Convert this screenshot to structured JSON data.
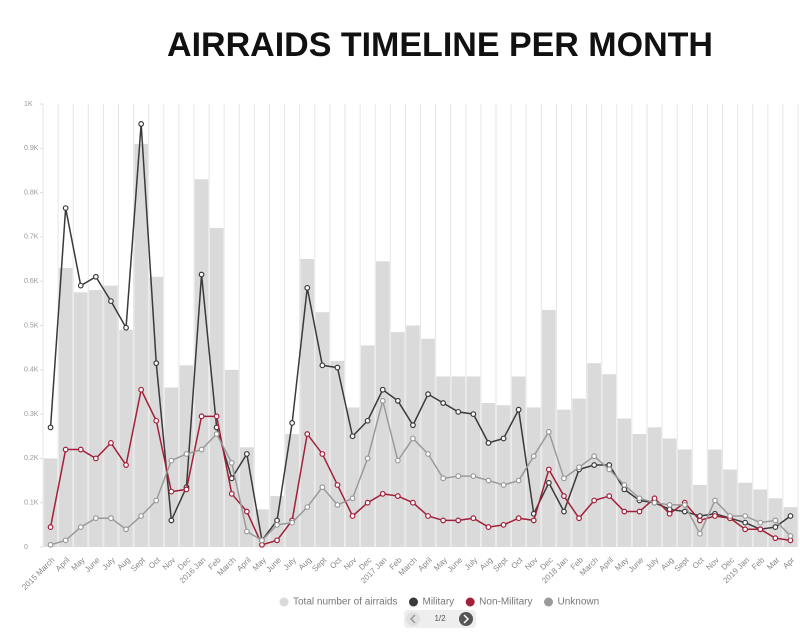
{
  "chart_data": {
    "type": "combo",
    "title": "AIRRAIDS TIMELINE PER MONTH",
    "categories": [
      "2015 March",
      "April",
      "May",
      "June",
      "July",
      "Aug",
      "Sept",
      "Oct",
      "Nov",
      "Dec",
      "2016 Jan",
      "Feb",
      "March",
      "April",
      "May",
      "June",
      "July",
      "Aug",
      "Sept",
      "Oct",
      "Nov",
      "Dec",
      "2017 Jan",
      "Feb",
      "March",
      "April",
      "May",
      "June",
      "July",
      "Aug",
      "Sept",
      "Oct",
      "Nov",
      "Dec",
      "2018 Jan",
      "Feb",
      "March",
      "April",
      "May",
      "June",
      "July",
      "Aug",
      "Sept",
      "Oct",
      "Nov",
      "Dec",
      "2019 Jan",
      "Feb",
      "Mar",
      "Apr"
    ],
    "series": [
      {
        "name": "Total number of airraids",
        "type": "bar",
        "color": "#dadada",
        "values": [
          200,
          630,
          575,
          580,
          590,
          490,
          910,
          610,
          360,
          410,
          830,
          720,
          400,
          225,
          85,
          115,
          255,
          650,
          530,
          420,
          315,
          455,
          645,
          485,
          500,
          470,
          385,
          385,
          385,
          325,
          320,
          385,
          315,
          535,
          310,
          335,
          415,
          390,
          290,
          255,
          270,
          245,
          220,
          140,
          220,
          175,
          145,
          130,
          110,
          90
        ]
      },
      {
        "name": "Military",
        "type": "line",
        "color": "#3a3a3a",
        "values": [
          270,
          765,
          590,
          610,
          555,
          495,
          955,
          415,
          60,
          135,
          615,
          270,
          155,
          210,
          15,
          60,
          280,
          585,
          410,
          405,
          250,
          285,
          355,
          330,
          275,
          345,
          325,
          305,
          300,
          235,
          245,
          310,
          75,
          145,
          80,
          175,
          185,
          185,
          130,
          105,
          100,
          85,
          80,
          70,
          75,
          65,
          55,
          40,
          45,
          70
        ]
      },
      {
        "name": "Non-Military",
        "type": "line",
        "color": "#a3203a",
        "values": [
          45,
          220,
          220,
          200,
          235,
          185,
          355,
          285,
          125,
          130,
          295,
          295,
          120,
          80,
          5,
          15,
          60,
          255,
          210,
          140,
          70,
          100,
          120,
          115,
          100,
          70,
          60,
          60,
          65,
          45,
          50,
          65,
          60,
          175,
          115,
          65,
          105,
          115,
          80,
          80,
          110,
          75,
          100,
          60,
          70,
          65,
          40,
          40,
          20,
          15
        ]
      },
      {
        "name": "Unknown",
        "type": "line",
        "color": "#9a9a9a",
        "values": [
          5,
          15,
          45,
          65,
          65,
          40,
          70,
          105,
          195,
          210,
          220,
          255,
          190,
          35,
          15,
          50,
          55,
          90,
          135,
          95,
          110,
          200,
          330,
          195,
          245,
          210,
          155,
          160,
          160,
          150,
          140,
          150,
          205,
          260,
          155,
          180,
          205,
          175,
          140,
          110,
          100,
          95,
          95,
          30,
          105,
          70,
          70,
          55,
          60,
          25
        ]
      }
    ],
    "ylim": [
      0,
      1000
    ],
    "yticks": [
      0,
      {
        "value": 100,
        "label": "0.1K"
      },
      {
        "value": 200,
        "label": "0.2K"
      },
      {
        "value": 300,
        "label": "0.3K"
      },
      {
        "value": 400,
        "label": "0.4K"
      },
      {
        "value": 500,
        "label": "0.5K"
      },
      {
        "value": 600,
        "label": "0.6K"
      },
      {
        "value": 700,
        "label": "0.7K"
      },
      {
        "value": 800,
        "label": "0.8K"
      },
      {
        "value": 900,
        "label": "0.9K"
      },
      {
        "value": 1000,
        "label": "1K"
      }
    ],
    "grid": "x"
  },
  "pager": "1/2"
}
